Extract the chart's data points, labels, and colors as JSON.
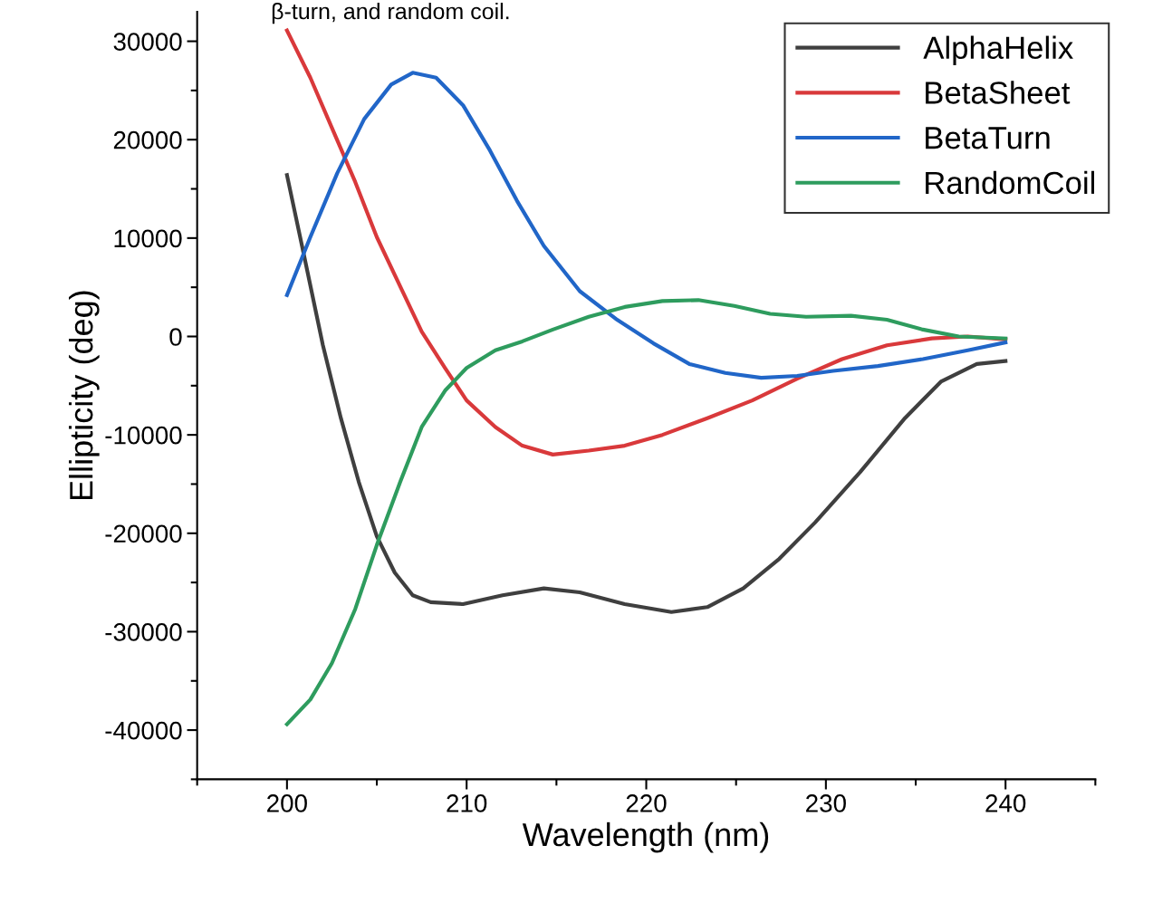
{
  "chart_data": {
    "type": "line",
    "xlabel": "Wavelength (nm)",
    "ylabel": "Ellipticity (deg)",
    "annotations": [
      "β-turn, and random coil."
    ],
    "xlim": [
      195,
      245
    ],
    "xticks": [
      200,
      210,
      220,
      230,
      240
    ],
    "ylim": [
      -45000,
      33000
    ],
    "yticks": [
      -40000,
      -30000,
      -20000,
      -10000,
      0,
      10000,
      20000,
      30000
    ],
    "grid": false,
    "legend": "top right",
    "marker": "none",
    "line_style": "solid",
    "series": [
      {
        "name": "AlphaHelix",
        "color": "#3f3f3f",
        "x": [
          200,
          201,
          202,
          203,
          204,
          205,
          206,
          207,
          208,
          209.8,
          212,
          214.3,
          216.3,
          218.8,
          221.4,
          223.4,
          225.4,
          227.4,
          229.4,
          231.9,
          234.4,
          236.4,
          238.4,
          240
        ],
        "values": [
          16400,
          7800,
          -900,
          -8300,
          -14800,
          -20300,
          -24000,
          -26300,
          -27000,
          -27200,
          -26300,
          -25600,
          -26000,
          -27200,
          -28000,
          -27500,
          -25600,
          -22600,
          -18900,
          -13800,
          -8300,
          -4600,
          -2800,
          -2500
        ]
      },
      {
        "name": "BetaSheet",
        "color": "#d9393b",
        "x": [
          200,
          201.3,
          202.5,
          203.8,
          205,
          206.3,
          207.5,
          208.8,
          210,
          211.6,
          213.1,
          214.8,
          216.8,
          218.8,
          220.9,
          223.4,
          225.9,
          228.4,
          230.9,
          233.4,
          235.9,
          237.9,
          240
        ],
        "values": [
          31100,
          26300,
          21200,
          15700,
          10100,
          5100,
          500,
          -3200,
          -6500,
          -9200,
          -11100,
          -12000,
          -11600,
          -11100,
          -10000,
          -8300,
          -6500,
          -4300,
          -2300,
          -900,
          -200,
          0,
          -300
        ]
      },
      {
        "name": "BetaTurn",
        "color": "#2166c8",
        "x": [
          200,
          201.3,
          202.8,
          204.3,
          205.8,
          207,
          208.3,
          209.8,
          211.3,
          212.8,
          214.3,
          216.3,
          218.3,
          220.4,
          222.4,
          224.4,
          226.4,
          228.4,
          230.4,
          232.9,
          235.4,
          237.9,
          240
        ],
        "values": [
          4200,
          10100,
          16600,
          22100,
          25600,
          26800,
          26300,
          23500,
          18900,
          13800,
          9200,
          4600,
          1800,
          -700,
          -2800,
          -3700,
          -4200,
          -4000,
          -3500,
          -3000,
          -2300,
          -1400,
          -600
        ]
      },
      {
        "name": "RandomCoil",
        "color": "#2e9c5e",
        "x": [
          200,
          201.3,
          202.5,
          203.8,
          205,
          206.3,
          207.5,
          208.8,
          210,
          211.6,
          213.1,
          214.8,
          216.8,
          218.8,
          220.9,
          222.9,
          224.9,
          226.9,
          228.9,
          231.4,
          233.4,
          235.4,
          237.4,
          240
        ],
        "values": [
          -39400,
          -36900,
          -33200,
          -27700,
          -21200,
          -14800,
          -9200,
          -5500,
          -3200,
          -1400,
          -500,
          700,
          2000,
          3000,
          3600,
          3700,
          3100,
          2300,
          2000,
          2100,
          1700,
          700,
          0,
          -200
        ]
      }
    ]
  }
}
